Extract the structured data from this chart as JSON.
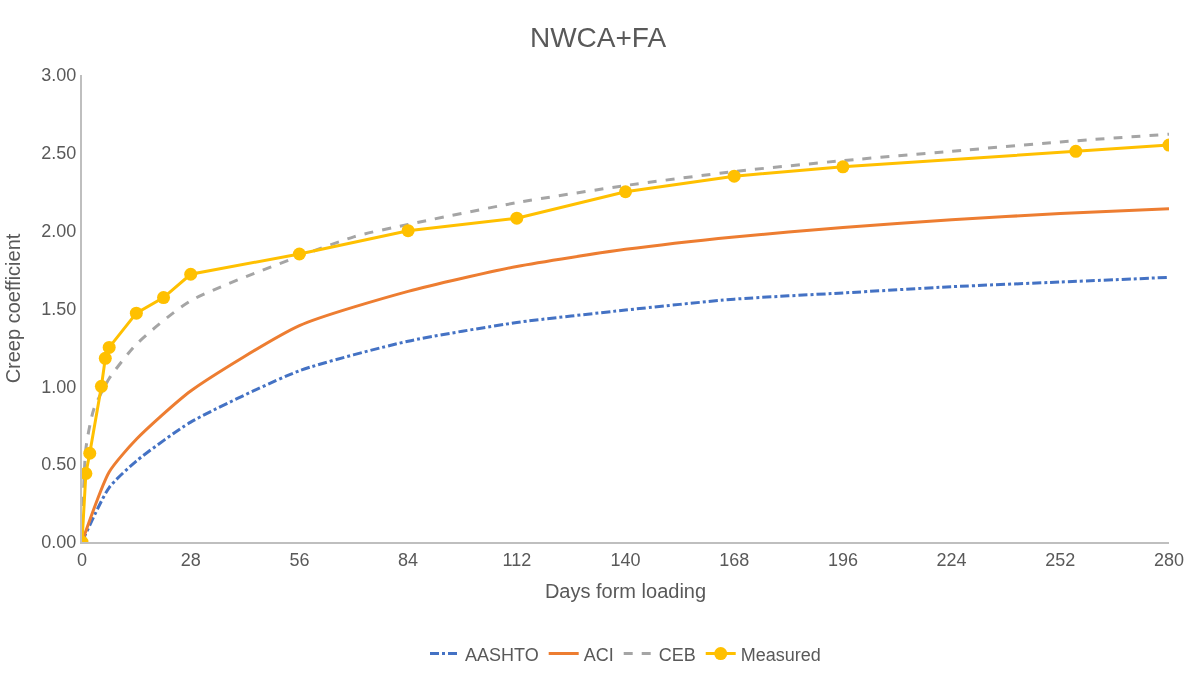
{
  "chart_data": {
    "type": "line",
    "title": "NWCA+FA",
    "xlabel": "Days form loading",
    "ylabel": "Creep coefficient",
    "xlim": [
      0,
      280
    ],
    "ylim": [
      0,
      3
    ],
    "xticks": [
      0,
      28,
      56,
      84,
      112,
      140,
      168,
      196,
      224,
      252,
      280
    ],
    "yticks": [
      {
        "value": 0,
        "label": "0.00"
      },
      {
        "value": 0.5,
        "label": "0.50"
      },
      {
        "value": 1,
        "label": "1.00"
      },
      {
        "value": 1.5,
        "label": "1.50"
      },
      {
        "value": 2,
        "label": "2.00"
      },
      {
        "value": 2.5,
        "label": "2.50"
      },
      {
        "value": 3,
        "label": "3.00"
      }
    ],
    "grid": false,
    "legend": "bottom",
    "series": [
      {
        "name": "AASHTO",
        "color": "#4472c4",
        "line_style": "dashdot",
        "marker": "none",
        "x": [
          0,
          7,
          14,
          28,
          56,
          84,
          112,
          140,
          168,
          196,
          224,
          252,
          280
        ],
        "values": [
          0,
          0.35,
          0.52,
          0.77,
          1.1,
          1.29,
          1.41,
          1.49,
          1.56,
          1.6,
          1.64,
          1.67,
          1.7
        ]
      },
      {
        "name": "ACI",
        "color": "#ed7d31",
        "line_style": "solid",
        "marker": "none",
        "x": [
          0,
          7,
          14,
          28,
          56,
          84,
          112,
          140,
          168,
          196,
          224,
          252,
          280
        ],
        "values": [
          0,
          0.45,
          0.66,
          0.97,
          1.39,
          1.61,
          1.77,
          1.88,
          1.96,
          2.02,
          2.07,
          2.11,
          2.14
        ]
      },
      {
        "name": "CEB",
        "color": "#a5a5a5",
        "line_style": "dashed",
        "marker": "none",
        "x": [
          0,
          1,
          3,
          7,
          14,
          28,
          70,
          84,
          112,
          140,
          168,
          196,
          224,
          252,
          280
        ],
        "values": [
          0,
          0.6,
          0.85,
          1.05,
          1.27,
          1.55,
          1.96,
          2.04,
          2.18,
          2.29,
          2.38,
          2.45,
          2.51,
          2.57,
          2.62
        ]
      },
      {
        "name": "Measured",
        "color": "#ffc000",
        "line_style": "solid",
        "marker": "circle",
        "x": [
          0,
          1,
          2,
          5,
          6,
          7,
          14,
          21,
          28,
          56,
          84,
          112,
          140,
          168,
          196,
          256,
          280
        ],
        "values": [
          0,
          0.44,
          0.57,
          1.0,
          1.18,
          1.25,
          1.47,
          1.57,
          1.72,
          1.85,
          2.0,
          2.08,
          2.25,
          2.35,
          2.41,
          2.51,
          2.55
        ]
      }
    ]
  }
}
